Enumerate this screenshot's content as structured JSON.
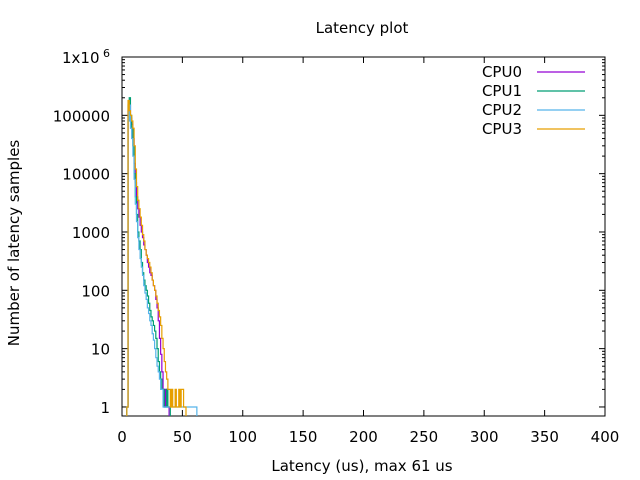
{
  "chart_data": {
    "type": "line",
    "title": "Latency plot",
    "xlabel": "Latency (us), max 61 us",
    "ylabel": "Number of latency samples",
    "xlim": [
      0,
      400
    ],
    "ylim": [
      0.7,
      1000000
    ],
    "yscale": "log",
    "grid": false,
    "legend_position": "top-right",
    "x_ticks": [
      0,
      50,
      100,
      150,
      200,
      250,
      300,
      350,
      400
    ],
    "y_ticks": [
      {
        "value": 1,
        "label": "1"
      },
      {
        "value": 10,
        "label": "10"
      },
      {
        "value": 100,
        "label": "100"
      },
      {
        "value": 1000,
        "label": "1000"
      },
      {
        "value": 10000,
        "label": "10000"
      },
      {
        "value": 100000,
        "label": "100000"
      },
      {
        "value": 1000000,
        "label": "1x10",
        "superscript": "6"
      }
    ],
    "series": [
      {
        "name": "CPU0",
        "color": "#9400d3",
        "x": [
          4,
          5,
          6,
          7,
          8,
          9,
          10,
          11,
          12,
          13,
          14,
          15,
          16,
          17,
          18,
          19,
          20,
          21,
          22,
          23,
          24,
          25,
          26,
          27,
          28,
          29,
          30,
          31,
          32,
          33,
          34,
          35,
          36,
          37,
          38
        ],
        "values": [
          1,
          120000,
          150000,
          90000,
          70000,
          40000,
          15000,
          7000,
          4000,
          2500,
          1800,
          1300,
          1000,
          800,
          600,
          500,
          400,
          300,
          250,
          200,
          180,
          150,
          120,
          100,
          70,
          50,
          30,
          15,
          8,
          4,
          2,
          1,
          2,
          1,
          1
        ]
      },
      {
        "name": "CPU1",
        "color": "#009e73",
        "x": [
          4,
          5,
          6,
          7,
          8,
          9,
          10,
          11,
          12,
          13,
          14,
          15,
          16,
          17,
          18,
          19,
          20,
          21,
          22,
          23,
          24,
          25,
          26,
          27,
          28,
          29,
          30,
          31,
          32,
          33,
          34,
          35,
          36,
          37,
          38,
          39
        ],
        "values": [
          1,
          150000,
          200000,
          100000,
          60000,
          30000,
          10000,
          4000,
          2000,
          1000,
          700,
          500,
          300,
          200,
          150,
          120,
          100,
          80,
          60,
          45,
          35,
          30,
          25,
          20,
          15,
          10,
          6,
          4,
          3,
          2,
          2,
          1,
          1,
          2,
          1,
          1
        ]
      },
      {
        "name": "CPU2",
        "color": "#56b4e9",
        "x": [
          4,
          5,
          6,
          7,
          8,
          9,
          10,
          11,
          12,
          13,
          14,
          15,
          16,
          17,
          18,
          19,
          20,
          21,
          22,
          23,
          24,
          25,
          26,
          27,
          28,
          29,
          30,
          31,
          32,
          33,
          34,
          35,
          36,
          37,
          40,
          45,
          50,
          55,
          60,
          61
        ],
        "values": [
          1,
          80000,
          150000,
          60000,
          40000,
          20000,
          8000,
          3000,
          1500,
          800,
          500,
          350,
          250,
          180,
          120,
          90,
          70,
          50,
          40,
          30,
          25,
          18,
          14,
          10,
          7,
          5,
          4,
          3,
          2,
          2,
          1,
          1,
          1,
          1,
          1,
          1,
          1,
          1,
          1,
          1
        ]
      },
      {
        "name": "CPU3",
        "color": "#e69f00",
        "x": [
          4,
          5,
          6,
          7,
          8,
          9,
          10,
          11,
          12,
          13,
          14,
          15,
          16,
          17,
          18,
          19,
          20,
          21,
          22,
          23,
          24,
          25,
          26,
          27,
          28,
          29,
          30,
          31,
          32,
          33,
          34,
          35,
          36,
          37,
          38,
          39,
          40,
          41,
          42,
          43,
          44,
          45,
          46,
          47,
          48,
          49,
          50,
          51,
          52
        ],
        "values": [
          1,
          180000,
          120000,
          100000,
          80000,
          60000,
          30000,
          12000,
          6000,
          3500,
          2500,
          1800,
          1300,
          900,
          700,
          500,
          400,
          350,
          300,
          250,
          200,
          150,
          120,
          100,
          80,
          60,
          45,
          35,
          25,
          15,
          10,
          6,
          4,
          3,
          2,
          2,
          1,
          2,
          1,
          1,
          2,
          1,
          1,
          2,
          1,
          2,
          2,
          1,
          1
        ]
      }
    ]
  }
}
